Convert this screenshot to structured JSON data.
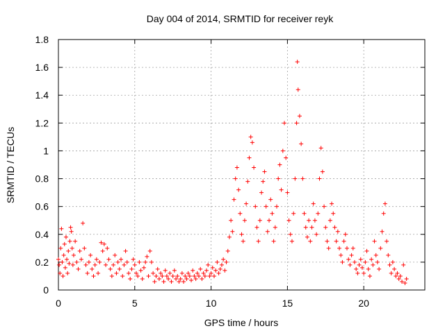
{
  "chart_data": {
    "type": "scatter",
    "title": "Day 004 of 2014, SRMTID for receiver reyk",
    "xlabel": "GPS time / hours",
    "ylabel": "SRMTID / TECUs",
    "xlim": [
      0,
      24
    ],
    "ylim": [
      0,
      1.8
    ],
    "x_ticks": [
      0,
      5,
      10,
      15,
      20
    ],
    "x_tick_labels": [
      "0",
      "5",
      "10",
      "15",
      "20"
    ],
    "y_ticks": [
      0,
      0.2,
      0.4,
      0.6,
      0.8,
      1.0,
      1.2,
      1.4,
      1.6,
      1.8
    ],
    "y_tick_labels": [
      "0",
      "0.2",
      "0.4",
      "0.6",
      "0.8",
      "1",
      "1.2",
      "1.4",
      "1.6",
      "1.8"
    ],
    "grid": true,
    "marker": "+",
    "color": "#ff0000",
    "series": [
      {
        "name": "SRMTID",
        "points": [
          [
            0.0,
            0.22
          ],
          [
            0.05,
            0.18
          ],
          [
            0.1,
            0.12
          ],
          [
            0.15,
            0.3
          ],
          [
            0.2,
            0.44
          ],
          [
            0.25,
            0.2
          ],
          [
            0.3,
            0.1
          ],
          [
            0.35,
            0.25
          ],
          [
            0.4,
            0.33
          ],
          [
            0.45,
            0.16
          ],
          [
            0.5,
            0.38
          ],
          [
            0.55,
            0.22
          ],
          [
            0.6,
            0.12
          ],
          [
            0.65,
            0.28
          ],
          [
            0.7,
            0.19
          ],
          [
            0.75,
            0.35
          ],
          [
            0.8,
            0.45
          ],
          [
            0.85,
            0.42
          ],
          [
            0.9,
            0.3
          ],
          [
            0.95,
            0.18
          ],
          [
            1.0,
            0.25
          ],
          [
            1.1,
            0.35
          ],
          [
            1.2,
            0.2
          ],
          [
            1.3,
            0.15
          ],
          [
            1.4,
            0.28
          ],
          [
            1.5,
            0.22
          ],
          [
            1.6,
            0.48
          ],
          [
            1.7,
            0.3
          ],
          [
            1.8,
            0.18
          ],
          [
            1.9,
            0.12
          ],
          [
            2.0,
            0.2
          ],
          [
            2.1,
            0.25
          ],
          [
            2.2,
            0.15
          ],
          [
            2.3,
            0.1
          ],
          [
            2.4,
            0.18
          ],
          [
            2.5,
            0.22
          ],
          [
            2.6,
            0.12
          ],
          [
            2.7,
            0.2
          ],
          [
            2.8,
            0.34
          ],
          [
            2.9,
            0.28
          ],
          [
            3.0,
            0.33
          ],
          [
            3.1,
            0.18
          ],
          [
            3.2,
            0.3
          ],
          [
            3.3,
            0.22
          ],
          [
            3.4,
            0.15
          ],
          [
            3.5,
            0.1
          ],
          [
            3.6,
            0.18
          ],
          [
            3.7,
            0.25
          ],
          [
            3.8,
            0.12
          ],
          [
            3.9,
            0.2
          ],
          [
            4.0,
            0.15
          ],
          [
            4.1,
            0.22
          ],
          [
            4.2,
            0.1
          ],
          [
            4.3,
            0.18
          ],
          [
            4.4,
            0.28
          ],
          [
            4.5,
            0.2
          ],
          [
            4.6,
            0.12
          ],
          [
            4.7,
            0.08
          ],
          [
            4.8,
            0.15
          ],
          [
            4.9,
            0.22
          ],
          [
            5.0,
            0.18
          ],
          [
            5.1,
            0.12
          ],
          [
            5.2,
            0.1
          ],
          [
            5.3,
            0.2
          ],
          [
            5.4,
            0.14
          ],
          [
            5.5,
            0.08
          ],
          [
            5.6,
            0.16
          ],
          [
            5.7,
            0.2
          ],
          [
            5.8,
            0.24
          ],
          [
            5.9,
            0.1
          ],
          [
            6.0,
            0.28
          ],
          [
            6.1,
            0.2
          ],
          [
            6.2,
            0.12
          ],
          [
            6.3,
            0.06
          ],
          [
            6.4,
            0.1
          ],
          [
            6.5,
            0.15
          ],
          [
            6.6,
            0.08
          ],
          [
            6.7,
            0.12
          ],
          [
            6.8,
            0.1
          ],
          [
            6.9,
            0.06
          ],
          [
            7.0,
            0.14
          ],
          [
            7.1,
            0.1
          ],
          [
            7.2,
            0.08
          ],
          [
            7.3,
            0.12
          ],
          [
            7.4,
            0.06
          ],
          [
            7.5,
            0.1
          ],
          [
            7.6,
            0.14
          ],
          [
            7.7,
            0.08
          ],
          [
            7.8,
            0.1
          ],
          [
            7.9,
            0.06
          ],
          [
            8.0,
            0.08
          ],
          [
            8.1,
            0.12
          ],
          [
            8.2,
            0.06
          ],
          [
            8.3,
            0.1
          ],
          [
            8.4,
            0.08
          ],
          [
            8.5,
            0.12
          ],
          [
            8.6,
            0.1
          ],
          [
            8.7,
            0.07
          ],
          [
            8.8,
            0.14
          ],
          [
            8.9,
            0.1
          ],
          [
            9.0,
            0.08
          ],
          [
            9.1,
            0.12
          ],
          [
            9.2,
            0.1
          ],
          [
            9.3,
            0.15
          ],
          [
            9.4,
            0.08
          ],
          [
            9.5,
            0.12
          ],
          [
            9.6,
            0.1
          ],
          [
            9.7,
            0.14
          ],
          [
            9.8,
            0.18
          ],
          [
            9.9,
            0.1
          ],
          [
            10.0,
            0.12
          ],
          [
            10.1,
            0.16
          ],
          [
            10.2,
            0.1
          ],
          [
            10.3,
            0.14
          ],
          [
            10.4,
            0.2
          ],
          [
            10.5,
            0.12
          ],
          [
            10.6,
            0.15
          ],
          [
            10.7,
            0.18
          ],
          [
            10.8,
            0.22
          ],
          [
            10.9,
            0.14
          ],
          [
            11.0,
            0.2
          ],
          [
            11.1,
            0.28
          ],
          [
            11.2,
            0.38
          ],
          [
            11.3,
            0.5
          ],
          [
            11.4,
            0.42
          ],
          [
            11.5,
            0.65
          ],
          [
            11.6,
            0.8
          ],
          [
            11.7,
            0.88
          ],
          [
            11.8,
            0.72
          ],
          [
            11.9,
            0.55
          ],
          [
            12.0,
            0.4
          ],
          [
            12.1,
            0.35
          ],
          [
            12.2,
            0.5
          ],
          [
            12.3,
            0.62
          ],
          [
            12.4,
            0.78
          ],
          [
            12.5,
            0.95
          ],
          [
            12.6,
            1.1
          ],
          [
            12.7,
            1.06
          ],
          [
            12.8,
            0.88
          ],
          [
            12.9,
            0.6
          ],
          [
            13.0,
            0.45
          ],
          [
            13.1,
            0.35
          ],
          [
            13.2,
            0.5
          ],
          [
            13.3,
            0.7
          ],
          [
            13.4,
            0.78
          ],
          [
            13.5,
            0.85
          ],
          [
            13.6,
            0.6
          ],
          [
            13.7,
            0.42
          ],
          [
            13.8,
            0.5
          ],
          [
            13.9,
            0.65
          ],
          [
            14.0,
            0.55
          ],
          [
            14.1,
            0.35
          ],
          [
            14.2,
            0.45
          ],
          [
            14.3,
            0.6
          ],
          [
            14.4,
            0.8
          ],
          [
            14.5,
            0.9
          ],
          [
            14.6,
            0.72
          ],
          [
            14.7,
            1.0
          ],
          [
            14.8,
            1.2
          ],
          [
            14.9,
            0.95
          ],
          [
            15.0,
            0.7
          ],
          [
            15.1,
            0.5
          ],
          [
            15.2,
            0.4
          ],
          [
            15.3,
            0.35
          ],
          [
            15.4,
            0.55
          ],
          [
            15.5,
            0.8
          ],
          [
            15.6,
            1.2
          ],
          [
            15.65,
            1.64
          ],
          [
            15.7,
            1.44
          ],
          [
            15.8,
            1.25
          ],
          [
            15.9,
            1.05
          ],
          [
            16.0,
            0.8
          ],
          [
            16.1,
            0.55
          ],
          [
            16.2,
            0.45
          ],
          [
            16.3,
            0.38
          ],
          [
            16.4,
            0.5
          ],
          [
            16.5,
            0.35
          ],
          [
            16.6,
            0.45
          ],
          [
            16.7,
            0.62
          ],
          [
            16.8,
            0.5
          ],
          [
            16.9,
            0.4
          ],
          [
            17.0,
            0.55
          ],
          [
            17.1,
            0.8
          ],
          [
            17.2,
            1.02
          ],
          [
            17.3,
            0.85
          ],
          [
            17.4,
            0.6
          ],
          [
            17.5,
            0.45
          ],
          [
            17.6,
            0.35
          ],
          [
            17.7,
            0.3
          ],
          [
            17.8,
            0.5
          ],
          [
            17.9,
            0.62
          ],
          [
            18.0,
            0.55
          ],
          [
            18.1,
            0.45
          ],
          [
            18.2,
            0.35
          ],
          [
            18.3,
            0.42
          ],
          [
            18.4,
            0.3
          ],
          [
            18.5,
            0.25
          ],
          [
            18.6,
            0.2
          ],
          [
            18.7,
            0.35
          ],
          [
            18.8,
            0.4
          ],
          [
            18.9,
            0.3
          ],
          [
            19.0,
            0.22
          ],
          [
            19.1,
            0.18
          ],
          [
            19.2,
            0.25
          ],
          [
            19.3,
            0.3
          ],
          [
            19.4,
            0.2
          ],
          [
            19.5,
            0.15
          ],
          [
            19.6,
            0.12
          ],
          [
            19.7,
            0.18
          ],
          [
            19.8,
            0.22
          ],
          [
            19.9,
            0.16
          ],
          [
            20.0,
            0.12
          ],
          [
            20.1,
            0.2
          ],
          [
            20.2,
            0.28
          ],
          [
            20.3,
            0.15
          ],
          [
            20.4,
            0.1
          ],
          [
            20.5,
            0.22
          ],
          [
            20.6,
            0.18
          ],
          [
            20.7,
            0.35
          ],
          [
            20.8,
            0.25
          ],
          [
            20.9,
            0.2
          ],
          [
            21.0,
            0.15
          ],
          [
            21.1,
            0.3
          ],
          [
            21.2,
            0.42
          ],
          [
            21.3,
            0.55
          ],
          [
            21.4,
            0.62
          ],
          [
            21.5,
            0.35
          ],
          [
            21.6,
            0.25
          ],
          [
            21.7,
            0.18
          ],
          [
            21.8,
            0.12
          ],
          [
            21.9,
            0.2
          ],
          [
            22.0,
            0.15
          ],
          [
            22.1,
            0.1
          ],
          [
            22.2,
            0.12
          ],
          [
            22.3,
            0.08
          ],
          [
            22.4,
            0.1
          ],
          [
            22.5,
            0.06
          ],
          [
            22.6,
            0.18
          ],
          [
            22.7,
            0.05
          ],
          [
            22.8,
            0.08
          ]
        ]
      }
    ]
  }
}
